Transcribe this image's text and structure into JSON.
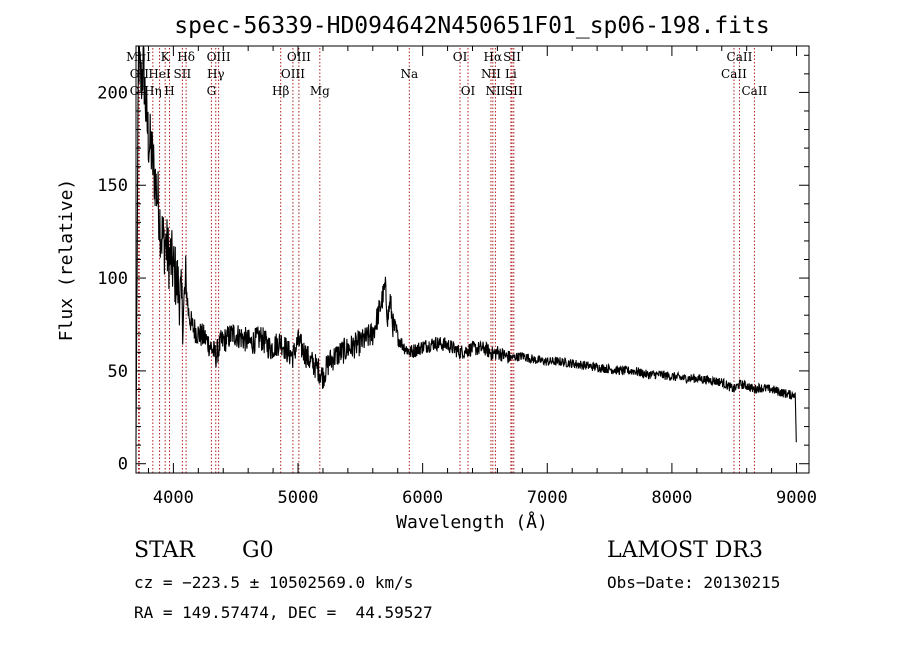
{
  "chart_data": {
    "type": "line",
    "title": "spec-56339-HD094642N450651F01_sp06-198.fits",
    "xlabel": "Wavelength (Å)",
    "ylabel": "Flux (relative)",
    "xlim": [
      3700,
      9100
    ],
    "ylim": [
      -5,
      225
    ],
    "x_ticks": [
      4000,
      5000,
      6000,
      7000,
      8000,
      9000
    ],
    "y_ticks": [
      0,
      50,
      100,
      150,
      200
    ],
    "x_tick_labels": [
      "4000",
      "5000",
      "6000",
      "7000",
      "8000",
      "9000"
    ],
    "y_tick_labels": [
      "0",
      "50",
      "100",
      "150",
      "200"
    ],
    "grid": false,
    "line_color": "#000000",
    "marker_color": "#b02020",
    "series": [
      {
        "x": [
          3700,
          3720,
          3740,
          3760,
          3780,
          3800,
          3820,
          3840,
          3860,
          3880,
          3900,
          3920,
          3940,
          3960,
          3980,
          4000,
          4020,
          4040,
          4060,
          4080,
          4100,
          4120,
          4150,
          4200,
          4250,
          4300,
          4340,
          4380,
          4420,
          4480,
          4550,
          4620,
          4700,
          4780,
          4861,
          4920,
          4960,
          5000,
          5050,
          5100,
          5150,
          5200,
          5250,
          5300,
          5400,
          5500,
          5600,
          5650,
          5700,
          5720,
          5740,
          5760,
          5800,
          5850,
          5900,
          6000,
          6100,
          6200,
          6300,
          6400,
          6500,
          6563,
          6600,
          6700,
          6800,
          6900,
          7000,
          7100,
          7200,
          7300,
          7400,
          7500,
          7600,
          7700,
          7800,
          7900,
          8000,
          8100,
          8200,
          8300,
          8400,
          8498,
          8542,
          8600,
          8662,
          8700,
          8800,
          8900,
          8960,
          8990,
          9000
        ],
        "y": [
          12,
          220,
          205,
          215,
          190,
          175,
          170,
          160,
          150,
          140,
          125,
          120,
          118,
          112,
          110,
          105,
          100,
          95,
          88,
          80,
          98,
          82,
          74,
          70,
          68,
          63,
          58,
          65,
          67,
          70,
          68,
          65,
          68,
          62,
          66,
          60,
          58,
          66,
          60,
          55,
          52,
          47,
          55,
          58,
          62,
          65,
          70,
          82,
          95,
          78,
          88,
          75,
          68,
          63,
          60,
          63,
          65,
          64,
          60,
          62,
          62,
          59,
          60,
          57,
          58,
          56,
          55,
          55,
          54,
          53,
          52,
          51,
          50,
          50,
          48,
          48,
          47,
          46,
          46,
          45,
          44,
          40,
          43,
          42,
          40,
          41,
          40,
          38,
          37,
          38,
          5
        ]
      }
    ],
    "annotations": [
      {
        "label": "MgI",
        "x": 3720,
        "row": 1
      },
      {
        "label": "OII",
        "x": 3727,
        "row": 2
      },
      {
        "label": "OII",
        "x": 3727,
        "row": 3
      },
      {
        "label": "Hη",
        "x": 3835,
        "row": 3
      },
      {
        "label": "K",
        "x": 3934,
        "row": 1
      },
      {
        "label": "HeI",
        "x": 3889,
        "row": 2
      },
      {
        "label": "H",
        "x": 3969,
        "row": 3
      },
      {
        "label": "SII",
        "x": 4072,
        "row": 2
      },
      {
        "label": "Hδ",
        "x": 4102,
        "row": 1
      },
      {
        "label": "OIII",
        "x": 4363,
        "row": 1
      },
      {
        "label": "Hγ",
        "x": 4340,
        "row": 2
      },
      {
        "label": "G",
        "x": 4305,
        "row": 3
      },
      {
        "label": "Hβ",
        "x": 4861,
        "row": 3
      },
      {
        "label": "OIII",
        "x": 5007,
        "row": 1
      },
      {
        "label": "OIII",
        "x": 4959,
        "row": 2
      },
      {
        "label": "Mg",
        "x": 5175,
        "row": 3
      },
      {
        "label": "Na",
        "x": 5893,
        "row": 2
      },
      {
        "label": "OI",
        "x": 6300,
        "row": 1
      },
      {
        "label": "OI",
        "x": 6364,
        "row": 3
      },
      {
        "label": "Hα",
        "x": 6563,
        "row": 1
      },
      {
        "label": "NII",
        "x": 6548,
        "row": 2
      },
      {
        "label": "NII",
        "x": 6584,
        "row": 3
      },
      {
        "label": "SII",
        "x": 6717,
        "row": 1
      },
      {
        "label": "Li",
        "x": 6708,
        "row": 2
      },
      {
        "label": "SII",
        "x": 6731,
        "row": 3
      },
      {
        "label": "CaII",
        "x": 8542,
        "row": 1
      },
      {
        "label": "CaII",
        "x": 8498,
        "row": 2
      },
      {
        "label": "CaII",
        "x": 8662,
        "row": 3
      }
    ]
  },
  "info": {
    "object_class": "STAR",
    "subclass": "G0",
    "survey": "LAMOST DR3",
    "cz": "cz = −223.5 ± 10502569.0 km/s",
    "obs_date": "Obs−Date: 20130215",
    "coords": "RA = 149.57474, DEC =  44.59527"
  }
}
